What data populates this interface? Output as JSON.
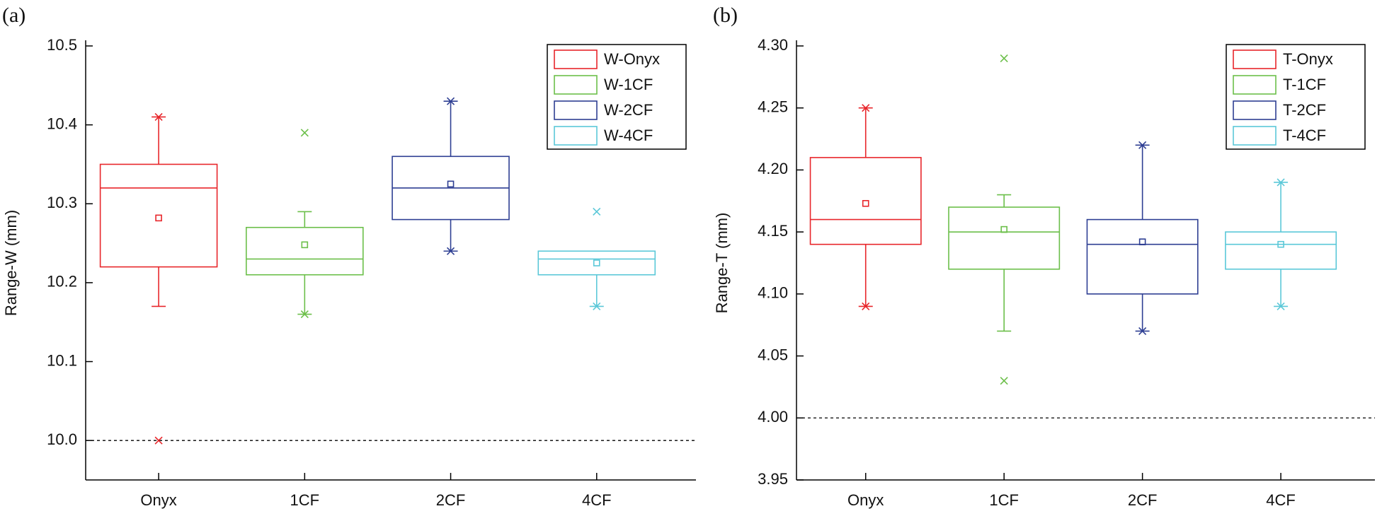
{
  "chart_data": [
    {
      "type": "box",
      "panel_label": "(a)",
      "ylabel": "Range-W (mm)",
      "categories": [
        "Onyx",
        "1CF",
        "2CF",
        "4CF"
      ],
      "ylim": [
        9.95,
        10.5
      ],
      "yticks": [
        {
          "value": 10,
          "label": "10.0"
        },
        10.1,
        10.2,
        10.3,
        10.4,
        10.5
      ],
      "reference_line": 10,
      "legend": "upper right",
      "series": [
        {
          "name": "W-Onyx",
          "color": "#e8262b",
          "whisker_low": 10.17,
          "q1": 10.22,
          "median": 10.32,
          "q3": 10.35,
          "whisker_high": 10.41,
          "mean": 10.282,
          "extremes": [
            10.41,
            10.0
          ]
        },
        {
          "name": "W-1CF",
          "color": "#6cbf4a",
          "whisker_low": 10.16,
          "q1": 10.21,
          "median": 10.23,
          "q3": 10.27,
          "whisker_high": 10.29,
          "mean": 10.248,
          "extremes": [
            10.39,
            10.16
          ]
        },
        {
          "name": "W-2CF",
          "color": "#2e3f93",
          "whisker_low": 10.24,
          "q1": 10.28,
          "median": 10.32,
          "q3": 10.36,
          "whisker_high": 10.43,
          "mean": 10.325,
          "extremes": [
            10.43,
            10.24
          ]
        },
        {
          "name": "W-4CF",
          "color": "#5bc8d8",
          "whisker_low": 10.17,
          "q1": 10.21,
          "median": 10.23,
          "q3": 10.24,
          "whisker_high": 10.24,
          "mean": 10.225,
          "extremes": [
            10.29,
            10.17
          ]
        }
      ]
    },
    {
      "type": "box",
      "panel_label": "(b)",
      "ylabel": "Range-T (mm)",
      "categories": [
        "Onyx",
        "1CF",
        "2CF",
        "4CF"
      ],
      "ylim": [
        3.95,
        4.3
      ],
      "yticks": [
        3.95,
        {
          "value": 4,
          "label": "4.00"
        },
        4.05,
        {
          "value": 4.1,
          "label": "4.10"
        },
        4.15,
        {
          "value": 4.2,
          "label": "4.20"
        },
        4.25,
        {
          "value": 4.3,
          "label": "4.30"
        }
      ],
      "reference_line": 4,
      "legend": "upper right",
      "series": [
        {
          "name": "T-Onyx",
          "color": "#e8262b",
          "whisker_low": 4.09,
          "q1": 4.14,
          "median": 4.16,
          "q3": 4.21,
          "whisker_high": 4.25,
          "mean": 4.173,
          "extremes": [
            4.25,
            4.09
          ]
        },
        {
          "name": "T-1CF",
          "color": "#6cbf4a",
          "whisker_low": 4.07,
          "q1": 4.12,
          "median": 4.15,
          "q3": 4.17,
          "whisker_high": 4.18,
          "mean": 4.152,
          "extremes": [
            4.29,
            4.03
          ]
        },
        {
          "name": "T-2CF",
          "color": "#2e3f93",
          "whisker_low": 4.07,
          "q1": 4.1,
          "median": 4.14,
          "q3": 4.16,
          "whisker_high": 4.22,
          "mean": 4.142,
          "extremes": [
            4.22,
            4.07
          ]
        },
        {
          "name": "T-4CF",
          "color": "#5bc8d8",
          "whisker_low": 4.09,
          "q1": 4.12,
          "median": 4.14,
          "q3": 4.15,
          "whisker_high": 4.19,
          "mean": 4.14,
          "extremes": [
            4.19,
            4.09
          ]
        }
      ]
    }
  ]
}
